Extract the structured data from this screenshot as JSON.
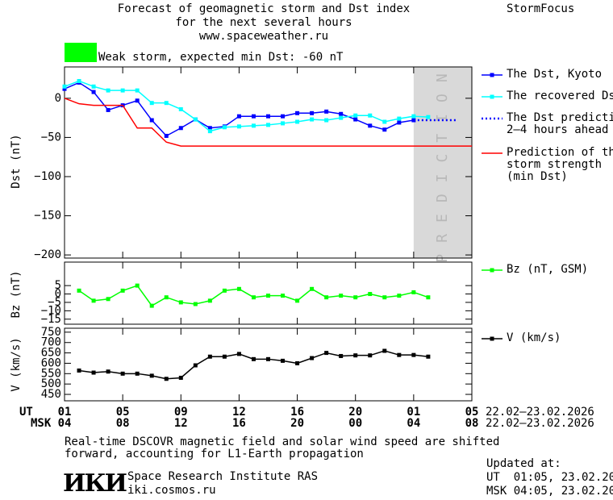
{
  "header": {
    "title": "Forecast of geomagnetic storm and Dst index",
    "subtitle": "for the next several hours",
    "url": "www.spaceweather.ru",
    "brand": "StormFocus"
  },
  "chart_data": [
    {
      "type": "line",
      "y_label": "Dst (nT)",
      "annotation": "Weak storm, expected min Dst: -60 nT",
      "annotation_color": "#00ff00",
      "xlim": [
        0,
        28
      ],
      "ylim": [
        -204,
        40
      ],
      "yticks": [
        0,
        {
          "value": -50,
          "label": "−50"
        },
        {
          "value": -100,
          "label": "−100"
        },
        {
          "value": -150,
          "label": "−150"
        },
        {
          "value": -200,
          "label": "−200"
        }
      ],
      "prediction": {
        "label": "PREDICTION",
        "xlim": [
          24,
          28
        ],
        "color": "#d9d9d9"
      },
      "series": [
        {
          "name": "The Dst, Kyoto",
          "color": "#0000ff",
          "marker": "square",
          "x": [
            0,
            1,
            2,
            3,
            4,
            5,
            6,
            7,
            8,
            9,
            10,
            11,
            12,
            13,
            14,
            15,
            16,
            17,
            18,
            19,
            20,
            21,
            22,
            23,
            24
          ],
          "values": [
            12,
            20,
            8,
            -15,
            -9,
            -3,
            -28,
            -48,
            -38,
            -27,
            -38,
            -36,
            -23,
            -23,
            -23,
            -23,
            -19,
            -19,
            -17,
            -20,
            -27,
            -35,
            -40,
            -31,
            -28
          ]
        },
        {
          "name": "The recovered Dst",
          "color": "#00ffff",
          "marker": "square",
          "x": [
            0,
            1,
            2,
            3,
            4,
            5,
            6,
            7,
            8,
            9,
            10,
            11,
            12,
            13,
            14,
            15,
            16,
            17,
            18,
            19,
            20,
            21,
            22,
            23,
            24,
            25
          ],
          "values": [
            15,
            22,
            15,
            10,
            10,
            10,
            -6,
            -6,
            -14,
            -27,
            -42,
            -37,
            -36,
            -35,
            -34,
            -32,
            -30,
            -27,
            -28,
            -25,
            -22,
            -22,
            -30,
            -26,
            -23,
            -24
          ]
        },
        {
          "name": "The Dst prediction\n2–4 hours ahead",
          "color": "#0000ff",
          "line_style": "dotted",
          "x": [
            24,
            27
          ],
          "values": [
            -28,
            -28
          ]
        },
        {
          "name": "Prediction of the\nstorm strength\n(min Dst)",
          "color": "#ff0000",
          "x": [
            0,
            1,
            2,
            4,
            5,
            6,
            7,
            8,
            28
          ],
          "values": [
            0,
            -7,
            -9,
            -9,
            -38,
            -38,
            -56,
            -61,
            -61
          ]
        }
      ]
    },
    {
      "type": "line",
      "y_label": "Bz (nT)",
      "xlim": [
        0,
        28
      ],
      "ylim": [
        -18,
        19
      ],
      "yticks": [
        5,
        0,
        {
          "value": -5,
          "label": "−5"
        },
        {
          "value": -10,
          "label": "−10"
        },
        {
          "value": -15,
          "label": "−15"
        }
      ],
      "series": [
        {
          "name": "Bz (nT, GSM)",
          "color": "#00ff00",
          "marker": "square",
          "x": [
            1,
            2,
            3,
            4,
            5,
            6,
            7,
            8,
            9,
            10,
            11,
            12,
            13,
            14,
            15,
            16,
            17,
            18,
            19,
            20,
            21,
            22,
            23,
            24,
            25
          ],
          "values": [
            2,
            -4,
            -3,
            2,
            5,
            -7,
            -2,
            -5,
            -6,
            -4,
            2,
            3,
            -2,
            -1,
            -1,
            -4,
            3,
            -2,
            -1,
            -2,
            0,
            -2,
            -1,
            1,
            -2
          ]
        }
      ]
    },
    {
      "type": "line",
      "y_label": "V (km/s)",
      "xlim": [
        0,
        28
      ],
      "ylim": [
        419,
        769
      ],
      "yticks": [
        750,
        700,
        650,
        600,
        550,
        500,
        450
      ],
      "x_label": "UT",
      "x2_label": "MSK",
      "xticks": [
        {
          "value": 0,
          "label": "01"
        },
        {
          "value": 4,
          "label": "05"
        },
        {
          "value": 8,
          "label": "09"
        },
        12,
        16,
        20,
        {
          "value": 24,
          "label": "01"
        },
        {
          "value": 28,
          "label": "05"
        }
      ],
      "x2_tick_labels": [
        "04",
        "08",
        "12",
        "16",
        "20",
        "00",
        "04",
        "08"
      ],
      "date_range_ut": "22.02–23.02.2026",
      "date_range_msk": "22.02–23.02.2026",
      "series": [
        {
          "name": "V (km/s)",
          "color": "#000000",
          "marker": "square",
          "x": [
            1,
            2,
            3,
            4,
            5,
            6,
            7,
            8,
            9,
            10,
            11,
            12,
            13,
            14,
            15,
            16,
            17,
            18,
            19,
            20,
            21,
            22,
            23,
            24,
            25
          ],
          "values": [
            565,
            555,
            560,
            550,
            550,
            540,
            525,
            530,
            590,
            632,
            632,
            645,
            620,
            620,
            612,
            600,
            625,
            650,
            635,
            638,
            638,
            660,
            640,
            640,
            632
          ]
        }
      ]
    }
  ],
  "footer": {
    "note": "Real-time DSCOVR magnetic field and solar wind speed are shifted\nforward, accounting for L1-Earth propagation",
    "logo": "ИКИ",
    "institute": "Space Research Institute RAS",
    "site": "iki.cosmos.ru",
    "updated_title": "Updated at:",
    "updated_ut": "UT  01:05, 23.02.2026",
    "updated_msk": "MSK 04:05, 23.02.2026"
  }
}
